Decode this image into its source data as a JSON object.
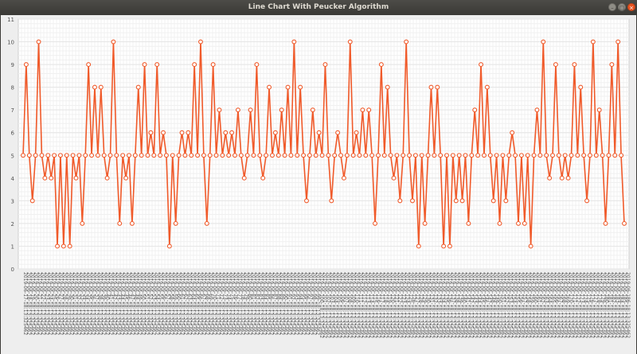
{
  "window": {
    "title": "Line Chart With Peucker Algorithm",
    "buttons": {
      "minimize": "–",
      "maximize": "□",
      "close": "×"
    }
  },
  "colors": {
    "line": "#f05a2a",
    "plot_bg": "#ffffff",
    "grid": "#e6e6e6",
    "tick_text": "#555555"
  },
  "chart_data": {
    "type": "line",
    "title": "",
    "xlabel": "",
    "ylabel": "",
    "ylim": [
      0,
      11
    ],
    "yticks": [
      0,
      1,
      2,
      3,
      4,
      5,
      6,
      7,
      8,
      9,
      10,
      11
    ],
    "grid": true,
    "legend": "none",
    "x_label_prefix": "2019-06-",
    "x_label_suffix": "18:13:325462",
    "x_labels_shown": 170,
    "x_label_start_day": 17,
    "values": [
      5,
      9,
      5,
      3,
      5,
      10,
      5,
      4,
      5,
      4,
      5,
      1,
      5,
      1,
      5,
      1,
      5,
      4,
      5,
      2,
      5,
      9,
      5,
      8,
      5,
      8,
      5,
      4,
      5,
      10,
      5,
      2,
      5,
      4,
      5,
      2,
      5,
      8,
      5,
      9,
      5,
      6,
      5,
      9,
      5,
      6,
      5,
      1,
      5,
      2,
      5,
      6,
      5,
      6,
      5,
      9,
      5,
      10,
      5,
      2,
      5,
      9,
      5,
      7,
      5,
      6,
      5,
      6,
      5,
      7,
      5,
      4,
      5,
      7,
      5,
      9,
      5,
      4,
      5,
      8,
      5,
      6,
      5,
      7,
      5,
      8,
      5,
      10,
      5,
      8,
      5,
      3,
      5,
      7,
      5,
      6,
      5,
      9,
      5,
      3,
      5,
      6,
      5,
      4,
      5,
      10,
      5,
      6,
      5,
      7,
      5,
      7,
      5,
      2,
      5,
      9,
      5,
      8,
      5,
      4,
      5,
      3,
      5,
      10,
      5,
      3,
      5,
      1,
      5,
      2,
      5,
      8,
      5,
      8,
      5,
      1,
      5,
      1,
      5,
      3,
      5,
      3,
      5,
      2,
      5,
      7,
      5,
      9,
      5,
      8,
      5,
      3,
      5,
      2,
      5,
      3,
      5,
      6,
      5,
      2,
      5,
      2,
      5,
      1,
      5,
      7,
      5,
      10,
      5,
      4,
      5,
      9,
      5,
      4,
      5,
      4,
      5,
      9,
      5,
      8,
      5,
      3,
      5,
      10,
      5,
      7,
      5,
      2,
      5,
      9,
      5,
      10,
      5,
      2
    ]
  }
}
